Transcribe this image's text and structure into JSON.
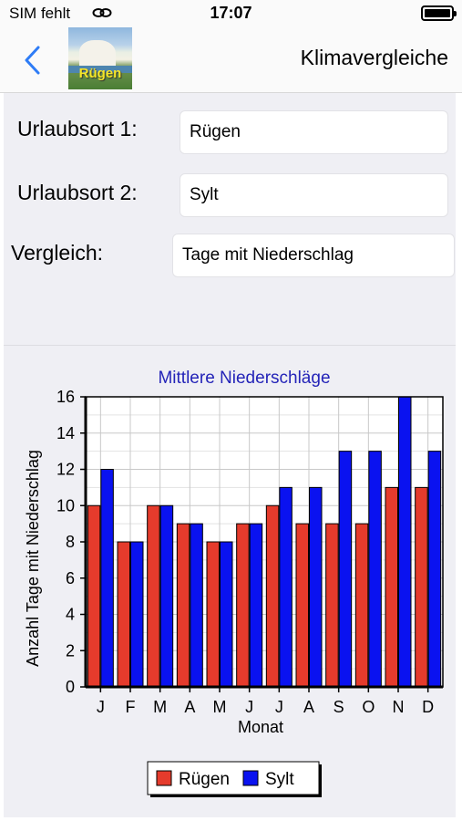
{
  "status_bar": {
    "carrier": "SIM fehlt",
    "wifi_icon": "link-icon",
    "time": "17:07",
    "battery_icon": "battery-full-icon"
  },
  "nav": {
    "back_icon": "chevron-left-icon",
    "logo_text": "Rügen",
    "title": "Klimavergleiche"
  },
  "form": {
    "location1_label": "Urlaubsort 1:",
    "location1_value": "Rügen",
    "location2_label": "Urlaubsort 2:",
    "location2_value": "Sylt",
    "comparison_label": "Vergleich:",
    "comparison_value": "Tage mit Niederschlag"
  },
  "colors": {
    "series1": "#e53b2c",
    "series2": "#0a12f0",
    "chart_title": "#2424b8",
    "plot_bg": "#ffffff",
    "grid": "#c8c8c8"
  },
  "chart_data": {
    "type": "bar",
    "title": "Mittlere Niederschläge",
    "xlabel": "Monat",
    "ylabel": "Anzahl Tage mit Niederschlag",
    "categories": [
      "J",
      "F",
      "M",
      "A",
      "M",
      "J",
      "J",
      "A",
      "S",
      "O",
      "N",
      "D"
    ],
    "ylim": [
      0,
      16
    ],
    "yticks": [
      "0",
      "2",
      "4",
      "6",
      "8",
      "10",
      "12",
      "14",
      "16"
    ],
    "grid": true,
    "legend_position": "bottom",
    "series": [
      {
        "name": "Rügen",
        "values": [
          10,
          8,
          10,
          9,
          8,
          9,
          10,
          9,
          9,
          9,
          11,
          11
        ]
      },
      {
        "name": "Sylt",
        "values": [
          12,
          8,
          10,
          9,
          8,
          9,
          11,
          11,
          13,
          13,
          16,
          13
        ]
      }
    ]
  }
}
